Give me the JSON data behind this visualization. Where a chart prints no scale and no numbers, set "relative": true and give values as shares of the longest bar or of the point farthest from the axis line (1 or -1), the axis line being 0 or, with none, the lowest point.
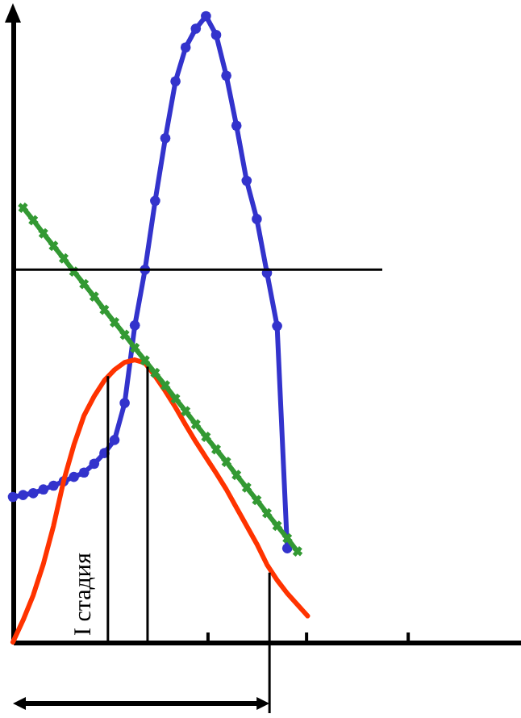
{
  "chart_data": {
    "type": "line",
    "relative": true,
    "grid": false,
    "marker": "none",
    "annotations": [
      "I стадия"
    ],
    "categories": [
      null,
      null,
      null,
      null,
      null,
      null,
      null,
      null,
      null,
      null,
      null,
      null,
      null,
      null,
      null,
      null,
      null,
      null,
      null,
      null,
      null,
      null,
      null,
      null,
      null,
      null,
      null,
      null,
      null,
      null,
      null,
      null,
      null,
      null,
      null,
      null,
      null,
      null,
      null,
      null,
      null,
      null,
      null,
      null,
      null,
      null,
      null,
      null,
      null,
      null,
      null
    ],
    "ref_lines": [
      {
        "axis": "y",
        "value": 0.595,
        "color": "#000000"
      }
    ],
    "series": [
      {
        "color": "#3333cc",
        "marker": "circle",
        "values": [
          0.232,
          0.235,
          0.238,
          0.244,
          0.25,
          0.257,
          0.264,
          0.271,
          0.285,
          0.302,
          0.323,
          0.382,
          0.506,
          0.595,
          0.705,
          0.805,
          0.896,
          0.95,
          0.98,
          1,
          0.97,
          0.905,
          0.825,
          0.737,
          0.676,
          0.59,
          0.505,
          0.15,
          null,
          null,
          null,
          null,
          null,
          null,
          null,
          null,
          null,
          null,
          null,
          null,
          null,
          null,
          null,
          null,
          null,
          null,
          null,
          null,
          null,
          null,
          null
        ]
      },
      {
        "color": "#ff3300",
        "values": [
          0,
          0.035,
          0.075,
          0.125,
          0.186,
          0.258,
          0.315,
          0.362,
          0.393,
          0.418,
          0.435,
          0.447,
          0.451,
          0.446,
          0.425,
          0.401,
          0.375,
          0.347,
          0.32,
          0.295,
          0.27,
          0.244,
          0.215,
          0.186,
          0.157,
          0.124,
          0.099,
          0.078,
          0.06,
          0.042,
          null,
          null,
          null,
          null,
          null,
          null,
          null,
          null,
          null,
          null,
          null,
          null,
          null,
          null,
          null,
          null,
          null,
          null,
          null,
          null,
          null
        ]
      },
      {
        "color": "#339933",
        "marker": "cross",
        "values": [
          null,
          0.694,
          0.674,
          0.653,
          0.633,
          0.613,
          0.592,
          0.572,
          0.552,
          0.531,
          0.511,
          0.491,
          0.47,
          0.45,
          0.43,
          0.41,
          0.389,
          0.369,
          0.348,
          0.328,
          0.308,
          0.288,
          0.267,
          0.247,
          0.227,
          0.206,
          0.186,
          0.166,
          0.145,
          null,
          null,
          null,
          null,
          null,
          null,
          null,
          null,
          null,
          null,
          null,
          null,
          null,
          null,
          null,
          null,
          null,
          null,
          null,
          null,
          null,
          null
        ]
      }
    ]
  }
}
